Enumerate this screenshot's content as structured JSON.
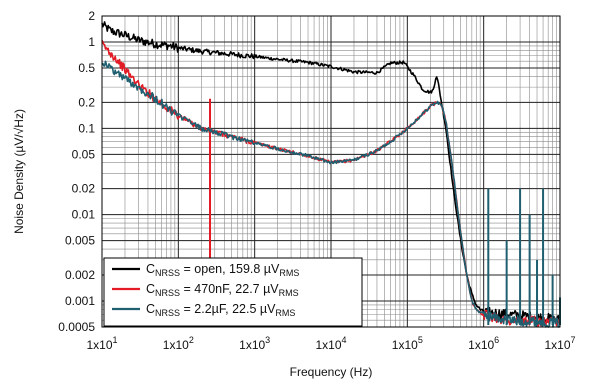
{
  "chart_data": {
    "type": "line",
    "xlabel": "Frequency (Hz)",
    "ylabel": "Noise Density (µV/√Hz)",
    "xscale": "log",
    "yscale": "log",
    "xlim": [
      10,
      10000000
    ],
    "ylim": [
      0.0005,
      2
    ],
    "grid": true,
    "legend_position": "bottom-left",
    "x_ticks": [
      {
        "value": 10,
        "base": "1x10",
        "exp": "1"
      },
      {
        "value": 100,
        "base": "1x10",
        "exp": "2"
      },
      {
        "value": 1000,
        "base": "1x10",
        "exp": "3"
      },
      {
        "value": 10000,
        "base": "1x10",
        "exp": "4"
      },
      {
        "value": 100000,
        "base": "1x10",
        "exp": "5"
      },
      {
        "value": 1000000,
        "base": "1x10",
        "exp": "6"
      },
      {
        "value": 10000000,
        "base": "1x10",
        "exp": "7"
      }
    ],
    "y_ticks": [
      {
        "value": 2,
        "label": "2"
      },
      {
        "value": 1,
        "label": "1"
      },
      {
        "value": 0.5,
        "label": "0.5"
      },
      {
        "value": 0.2,
        "label": "0.2"
      },
      {
        "value": 0.1,
        "label": "0.1"
      },
      {
        "value": 0.05,
        "label": "0.05"
      },
      {
        "value": 0.02,
        "label": "0.02"
      },
      {
        "value": 0.01,
        "label": "0.01"
      },
      {
        "value": 0.005,
        "label": "0.005"
      },
      {
        "value": 0.002,
        "label": "0.002"
      },
      {
        "value": 0.001,
        "label": "0.001"
      },
      {
        "value": 0.0005,
        "label": "0.0005"
      }
    ],
    "series": [
      {
        "legend": {
          "c": "C",
          "sub1": "NRSS",
          "mid": " = open, 159.8 µV",
          "sub2": "RMS"
        },
        "color": "#000000",
        "x": [
          10,
          13,
          20,
          30,
          50,
          80,
          100,
          200,
          500,
          1000,
          2000,
          5000,
          10000,
          20000,
          40000,
          60000,
          90000,
          120000,
          160000,
          200000,
          220000,
          240000,
          260000,
          280000,
          320000,
          400000,
          500000,
          600000,
          700000,
          800000,
          900000,
          1000000,
          2000000,
          5000000,
          10000000
        ],
        "y": [
          1.6,
          1.35,
          1.2,
          1.05,
          0.95,
          0.9,
          0.85,
          0.78,
          0.72,
          0.68,
          0.63,
          0.58,
          0.52,
          0.45,
          0.44,
          0.57,
          0.58,
          0.42,
          0.28,
          0.26,
          0.28,
          0.42,
          0.3,
          0.2,
          0.1,
          0.02,
          0.005,
          0.002,
          0.0012,
          0.0009,
          0.0008,
          0.00075,
          0.0007,
          0.00065,
          0.0006
        ],
        "spikes": [
          {
            "x": 10000000,
            "y": 0.0008
          }
        ]
      },
      {
        "legend": {
          "c": "C",
          "sub1": "NRSS",
          "mid": " = 470nF, 22.7 µV",
          "sub2": "RMS"
        },
        "color": "#e21b26",
        "x": [
          10,
          15,
          20,
          30,
          50,
          80,
          100,
          200,
          500,
          1000,
          2000,
          5000,
          10000,
          20000,
          40000,
          60000,
          100000,
          150000,
          200000,
          240000,
          280000,
          320000,
          400000,
          500000,
          600000,
          700000,
          800000,
          1000000,
          2000000,
          5000000,
          10000000
        ],
        "y": [
          0.95,
          0.65,
          0.48,
          0.32,
          0.22,
          0.16,
          0.14,
          0.1,
          0.08,
          0.068,
          0.058,
          0.048,
          0.04,
          0.043,
          0.055,
          0.07,
          0.1,
          0.14,
          0.18,
          0.2,
          0.19,
          0.12,
          0.03,
          0.006,
          0.002,
          0.001,
          0.0008,
          0.0007,
          0.0006,
          0.00058,
          0.00055
        ],
        "spikes": [
          {
            "x": 260,
            "y": 0.22
          }
        ]
      },
      {
        "legend": {
          "c": "C",
          "sub1": "NRSS",
          "mid": " = 2.2µF, 22.5 µV",
          "sub2": "RMS"
        },
        "color": "#1f5f70",
        "x": [
          10,
          15,
          20,
          30,
          50,
          80,
          100,
          200,
          500,
          1000,
          2000,
          5000,
          10000,
          20000,
          40000,
          60000,
          100000,
          150000,
          200000,
          240000,
          280000,
          320000,
          400000,
          500000,
          600000,
          700000,
          800000,
          1000000,
          2000000,
          5000000,
          10000000
        ],
        "y": [
          0.6,
          0.45,
          0.38,
          0.3,
          0.22,
          0.16,
          0.14,
          0.1,
          0.08,
          0.068,
          0.058,
          0.048,
          0.04,
          0.043,
          0.055,
          0.07,
          0.1,
          0.14,
          0.18,
          0.2,
          0.19,
          0.12,
          0.03,
          0.006,
          0.002,
          0.001,
          0.0008,
          0.0007,
          0.0006,
          0.00058,
          0.00055
        ],
        "spikes": [
          {
            "x": 1150000,
            "y": 0.02
          },
          {
            "x": 2000000,
            "y": 0.005
          },
          {
            "x": 3000000,
            "y": 0.02
          },
          {
            "x": 4000000,
            "y": 0.01
          },
          {
            "x": 5000000,
            "y": 0.003
          },
          {
            "x": 6000000,
            "y": 0.02
          },
          {
            "x": 8000000,
            "y": 0.002
          },
          {
            "x": 10000000,
            "y": 0.0011
          }
        ]
      }
    ]
  }
}
